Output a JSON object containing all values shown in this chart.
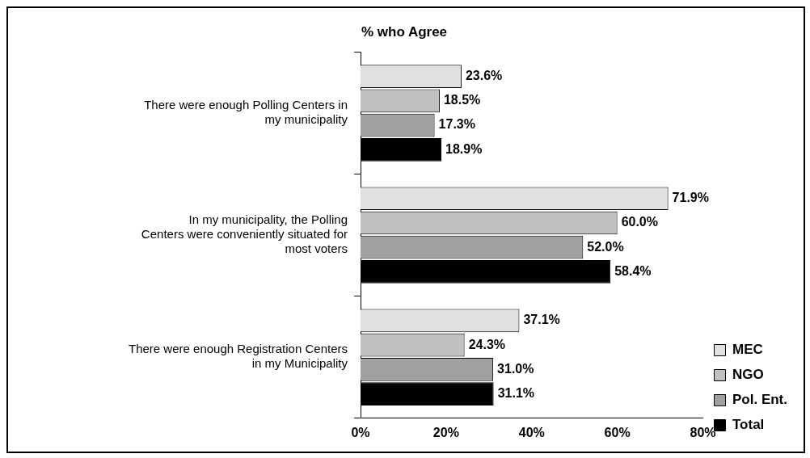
{
  "chart_data": {
    "type": "bar",
    "orientation": "horizontal",
    "title": "% who Agree",
    "categories": [
      "There were enough Polling Centers in my municipality",
      "In my municipality, the Polling Centers were conveniently situated for most voters",
      "There were enough Registration Centers in my Municipality"
    ],
    "series": [
      {
        "name": "MEC",
        "color": "#e0e0e0",
        "values": [
          23.6,
          71.9,
          37.1
        ],
        "value_labels": [
          "23.6%",
          "71.9%",
          "37.1%"
        ]
      },
      {
        "name": "NGO",
        "color": "#c0c0c0",
        "values": [
          18.5,
          60.0,
          24.3
        ],
        "value_labels": [
          "18.5%",
          "60.0%",
          "24.3%"
        ]
      },
      {
        "name": "Pol. Ent.",
        "color": "#a0a0a0",
        "values": [
          17.3,
          52.0,
          31.0
        ],
        "value_labels": [
          "17.3%",
          "52.0%",
          "31.0%"
        ]
      },
      {
        "name": "Total",
        "color": "#000000",
        "values": [
          18.9,
          58.4,
          31.1
        ],
        "value_labels": [
          "18.9%",
          "58.4%",
          "31.1%"
        ]
      }
    ],
    "xlim": [
      0,
      80
    ],
    "xticks": [
      {
        "value": 0,
        "label": "0%"
      },
      {
        "value": 20,
        "label": "20%"
      },
      {
        "value": 40,
        "label": "40%"
      },
      {
        "value": 60,
        "label": "60%"
      },
      {
        "value": 80,
        "label": "80%"
      }
    ],
    "grid": false,
    "legend": "right"
  }
}
